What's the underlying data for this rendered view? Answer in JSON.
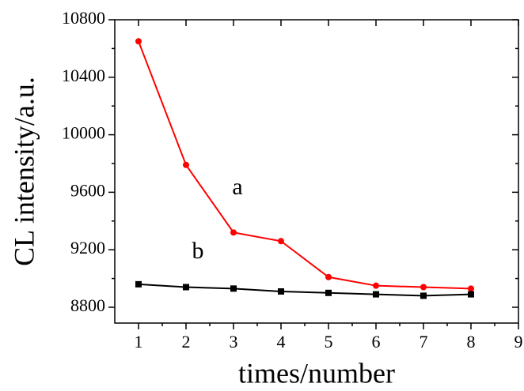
{
  "chart_data": {
    "type": "line",
    "x_label": "times/number",
    "y_label": "CL intensity/a.u.",
    "x": [
      1,
      2,
      3,
      4,
      5,
      6,
      7,
      8
    ],
    "series": [
      {
        "name": "a",
        "color": "#ff0000",
        "marker": "circle",
        "values": [
          10650,
          9790,
          9320,
          9260,
          9010,
          8950,
          8940,
          8930
        ]
      },
      {
        "name": "b",
        "color": "#000000",
        "marker": "square",
        "values": [
          8960,
          8940,
          8930,
          8910,
          8900,
          8890,
          8880,
          8890
        ]
      }
    ],
    "xlim": [
      0.5,
      9
    ],
    "xticks": [
      1,
      2,
      3,
      4,
      5,
      6,
      7,
      8,
      9
    ],
    "ylim": [
      8690,
      10800
    ],
    "yticks": [
      8800,
      9200,
      9600,
      10000,
      10400,
      10800
    ]
  }
}
